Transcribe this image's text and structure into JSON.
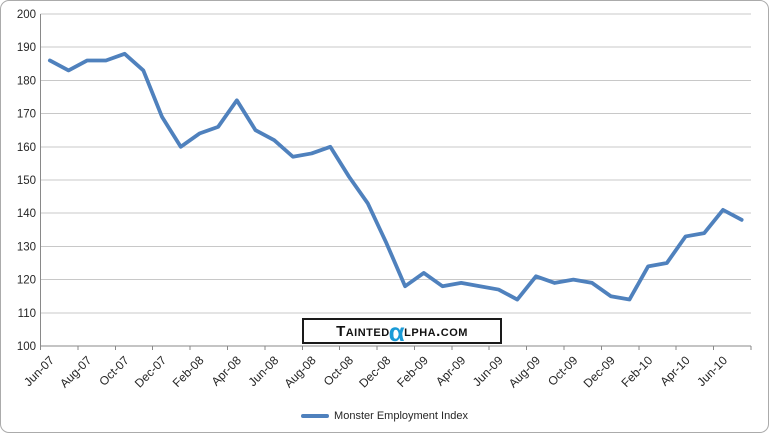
{
  "chart_data": {
    "type": "line",
    "x": [
      "Jun-07",
      "Jul-07",
      "Aug-07",
      "Sep-07",
      "Oct-07",
      "Nov-07",
      "Dec-07",
      "Jan-08",
      "Feb-08",
      "Mar-08",
      "Apr-08",
      "May-08",
      "Jun-08",
      "Jul-08",
      "Aug-08",
      "Sep-08",
      "Oct-08",
      "Nov-08",
      "Dec-08",
      "Jan-09",
      "Feb-09",
      "Mar-09",
      "Apr-09",
      "May-09",
      "Jun-09",
      "Jul-09",
      "Aug-09",
      "Sep-09",
      "Oct-09",
      "Nov-09",
      "Dec-09",
      "Jan-10",
      "Feb-10",
      "Mar-10",
      "Apr-10",
      "May-10",
      "Jun-10",
      "Jul-10"
    ],
    "x_tick_labels": [
      "Jun-07",
      "Aug-07",
      "Oct-07",
      "Dec-07",
      "Feb-08",
      "Apr-08",
      "Jun-08",
      "Aug-08",
      "Oct-08",
      "Dec-08",
      "Feb-09",
      "Apr-09",
      "Jun-09",
      "Aug-09",
      "Oct-09",
      "Dec-09",
      "Feb-10",
      "Apr-10",
      "Jun-10"
    ],
    "series": [
      {
        "name": "Monster Employment Index",
        "color": "#4F81BD",
        "values": [
          186,
          183,
          186,
          186,
          188,
          183,
          169,
          160,
          164,
          166,
          174,
          165,
          162,
          157,
          158,
          160,
          151,
          143,
          131,
          118,
          122,
          118,
          119,
          118,
          117,
          114,
          121,
          119,
          120,
          119,
          115,
          114,
          124,
          125,
          133,
          134,
          141,
          138
        ]
      }
    ],
    "ylim": [
      100,
      200
    ],
    "y_ticks": [
      100,
      110,
      120,
      130,
      140,
      150,
      160,
      170,
      180,
      190,
      200
    ],
    "grid": "horizontal",
    "legend_position": "bottom",
    "colors": {
      "gridline": "#C8C8C8",
      "axis": "#898989",
      "tick_label": "#262626"
    }
  },
  "watermark": {
    "part1": "Tainted",
    "alpha_glyph": "α",
    "part2": "lpha.com",
    "alpha_color": "#1A9BD7"
  }
}
